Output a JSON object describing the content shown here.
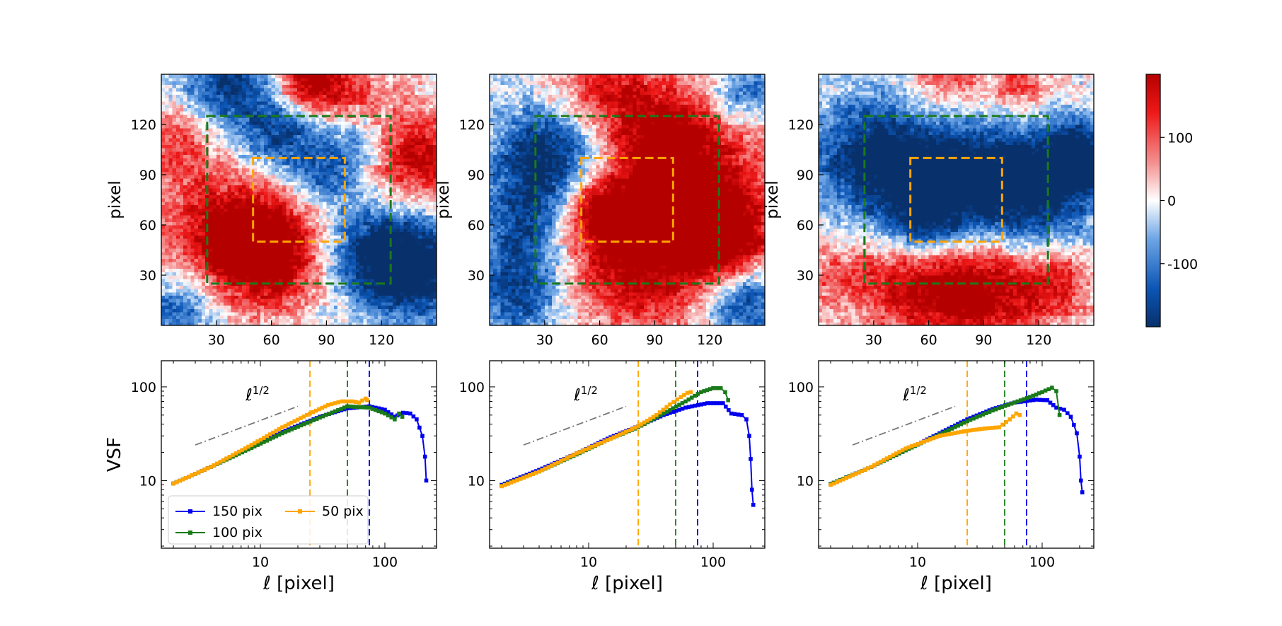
{
  "figure": {
    "map_ylabel": "pixel",
    "vsf_ylabel": "VSF",
    "vsf_xlabel_symbol": "ℓ",
    "vsf_xlabel_unit": "[pixel]",
    "slope_annotation_base": "ℓ",
    "slope_annotation_exp": "1/2",
    "colorbar": {
      "colormap": "diverging blue-white-red",
      "range": [
        -200,
        200
      ],
      "ticks": [
        "100",
        "0",
        "-100"
      ],
      "tick_values": [
        100,
        0,
        -100
      ],
      "colors": {
        "neg": "#08306b",
        "mid": "#ffffff",
        "pos": "#cc0000"
      }
    },
    "colors": {
      "box_150": "#0000ee",
      "box_100": "#1a7a1a",
      "box_50": "#ffa500",
      "slope_line": "#777777"
    },
    "legend": [
      {
        "label": "150 pix",
        "color": "#0000ee"
      },
      {
        "label": "50 pix",
        "color": "#ffa500"
      },
      {
        "label": "100 pix",
        "color": "#1a7a1a"
      }
    ]
  },
  "chart_data": [
    {
      "type": "heatmap",
      "panel": "top-left",
      "ylabel": "pixel",
      "xticks": [
        30,
        60,
        90,
        120
      ],
      "yticks": [
        30,
        60,
        90,
        120
      ],
      "xlim": [
        0,
        150
      ],
      "ylim": [
        0,
        150
      ],
      "boxes": [
        {
          "name": "100 pix",
          "color": "#1a7a1a",
          "x": [
            25,
            125
          ],
          "y": [
            25,
            125
          ]
        },
        {
          "name": "50 pix",
          "color": "#ffa500",
          "x": [
            50,
            100
          ],
          "y": [
            50,
            100
          ]
        }
      ],
      "blobs": [
        {
          "x": 40,
          "y": 55,
          "r": 38,
          "v": 1.0
        },
        {
          "x": 60,
          "y": 40,
          "r": 28,
          "v": 0.8
        },
        {
          "x": 80,
          "y": 145,
          "r": 18,
          "v": 0.9
        },
        {
          "x": 140,
          "y": 100,
          "r": 30,
          "v": 0.9
        },
        {
          "x": 5,
          "y": 110,
          "r": 25,
          "v": 0.5
        },
        {
          "x": 100,
          "y": 140,
          "r": 25,
          "v": 0.5
        },
        {
          "x": 35,
          "y": 145,
          "r": 25,
          "v": -0.8
        },
        {
          "x": 65,
          "y": 115,
          "r": 25,
          "v": -0.8
        },
        {
          "x": 90,
          "y": 90,
          "r": 18,
          "v": -0.6
        },
        {
          "x": 120,
          "y": 45,
          "r": 30,
          "v": -1.0
        },
        {
          "x": 140,
          "y": 30,
          "r": 25,
          "v": -0.9
        },
        {
          "x": 10,
          "y": 10,
          "r": 25,
          "v": -0.6
        },
        {
          "x": 110,
          "y": 110,
          "r": 18,
          "v": -0.5
        }
      ]
    },
    {
      "type": "heatmap",
      "panel": "top-middle",
      "ylabel": "pixel",
      "xticks": [
        30,
        60,
        90,
        120
      ],
      "yticks": [
        30,
        60,
        90,
        120
      ],
      "xlim": [
        0,
        150
      ],
      "ylim": [
        0,
        150
      ],
      "boxes": [
        {
          "name": "100 pix",
          "color": "#1a7a1a",
          "x": [
            25,
            125
          ],
          "y": [
            25,
            125
          ]
        },
        {
          "name": "50 pix",
          "color": "#ffa500",
          "x": [
            50,
            100
          ],
          "y": [
            50,
            100
          ]
        }
      ],
      "blobs": [
        {
          "x": 30,
          "y": 100,
          "r": 30,
          "v": -1.0
        },
        {
          "x": 20,
          "y": 60,
          "r": 25,
          "v": -0.7
        },
        {
          "x": 15,
          "y": 20,
          "r": 25,
          "v": -0.8
        },
        {
          "x": 140,
          "y": 140,
          "r": 18,
          "v": -0.6
        },
        {
          "x": 140,
          "y": 15,
          "r": 22,
          "v": -0.8
        },
        {
          "x": 110,
          "y": 85,
          "r": 40,
          "v": 1.0
        },
        {
          "x": 80,
          "y": 40,
          "r": 40,
          "v": 1.0
        },
        {
          "x": 90,
          "y": 120,
          "r": 30,
          "v": 0.7
        },
        {
          "x": 60,
          "y": 145,
          "r": 25,
          "v": 0.6
        },
        {
          "x": 60,
          "y": 70,
          "r": 20,
          "v": 0.7
        },
        {
          "x": 130,
          "y": 50,
          "r": 25,
          "v": 0.9
        }
      ]
    },
    {
      "type": "heatmap",
      "panel": "top-right",
      "ylabel": "pixel",
      "xticks": [
        30,
        60,
        90,
        120
      ],
      "yticks": [
        30,
        60,
        90,
        120
      ],
      "xlim": [
        0,
        150
      ],
      "ylim": [
        0,
        150
      ],
      "boxes": [
        {
          "name": "100 pix",
          "color": "#1a7a1a",
          "x": [
            25,
            125
          ],
          "y": [
            25,
            125
          ]
        },
        {
          "name": "50 pix",
          "color": "#ffa500",
          "x": [
            50,
            100
          ],
          "y": [
            50,
            100
          ]
        }
      ],
      "blobs": [
        {
          "x": 30,
          "y": 100,
          "r": 35,
          "v": -1.0
        },
        {
          "x": 75,
          "y": 85,
          "r": 35,
          "v": -1.0
        },
        {
          "x": 120,
          "y": 85,
          "r": 35,
          "v": -1.0
        },
        {
          "x": 145,
          "y": 100,
          "r": 20,
          "v": -0.9
        },
        {
          "x": 55,
          "y": 60,
          "r": 20,
          "v": -0.6
        },
        {
          "x": 90,
          "y": 20,
          "r": 30,
          "v": 1.0
        },
        {
          "x": 50,
          "y": 25,
          "r": 30,
          "v": 0.8
        },
        {
          "x": 10,
          "y": 30,
          "r": 18,
          "v": 0.4
        },
        {
          "x": 130,
          "y": 25,
          "r": 20,
          "v": 0.6
        },
        {
          "x": 70,
          "y": 145,
          "r": 20,
          "v": 0.5
        },
        {
          "x": 110,
          "y": 145,
          "r": 18,
          "v": 0.5
        }
      ]
    },
    {
      "type": "line",
      "panel": "bottom-left",
      "xscale": "log",
      "yscale": "log",
      "xlim": [
        1.6,
        260
      ],
      "ylim": [
        1.9,
        190
      ],
      "xlabel": "ℓ [pixel]",
      "ylabel": "VSF",
      "xticks": [
        10,
        100
      ],
      "yticks": [
        10,
        100
      ],
      "vlines": [
        {
          "x": 25,
          "color": "#ffa500"
        },
        {
          "x": 50,
          "color": "#1a7a1a"
        },
        {
          "x": 75,
          "color": "#0000ee"
        }
      ],
      "reference_line": {
        "x": [
          3,
          20
        ],
        "y": [
          24,
          62
        ]
      },
      "legend_location": "lower-left",
      "series": [
        {
          "name": "150 pix",
          "color": "#0000ee",
          "points": [
            [
              2,
              9.3
            ],
            [
              4,
              14
            ],
            [
              8,
              22
            ],
            [
              15,
              33
            ],
            [
              30,
              48
            ],
            [
              50,
              59
            ],
            [
              75,
              62
            ],
            [
              100,
              57
            ],
            [
              120,
              48
            ],
            [
              140,
              53
            ],
            [
              160,
              52
            ],
            [
              180,
              45
            ],
            [
              200,
              30
            ],
            [
              210,
              18
            ],
            [
              215,
              10
            ]
          ]
        },
        {
          "name": "100 pix",
          "color": "#1a7a1a",
          "points": [
            [
              2,
              9.3
            ],
            [
              4,
              14
            ],
            [
              8,
              21.5
            ],
            [
              15,
              32
            ],
            [
              30,
              47
            ],
            [
              50,
              62
            ],
            [
              75,
              60
            ],
            [
              100,
              52
            ],
            [
              120,
              45
            ],
            [
              130,
              52
            ],
            [
              138,
              48
            ]
          ]
        },
        {
          "name": "50 pix",
          "color": "#ffa500",
          "points": [
            [
              2,
              9.3
            ],
            [
              4,
              14
            ],
            [
              8,
              23
            ],
            [
              15,
              37
            ],
            [
              25,
              52
            ],
            [
              35,
              64
            ],
            [
              45,
              70
            ],
            [
              55,
              70
            ],
            [
              62,
              68
            ],
            [
              70,
              75
            ],
            [
              72,
              72
            ]
          ]
        }
      ]
    },
    {
      "type": "line",
      "panel": "bottom-middle",
      "xscale": "log",
      "yscale": "log",
      "xlim": [
        1.6,
        260
      ],
      "ylim": [
        1.9,
        190
      ],
      "xlabel": "ℓ [pixel]",
      "xticks": [
        10,
        100
      ],
      "yticks": [
        10,
        100
      ],
      "vlines": [
        {
          "x": 25,
          "color": "#ffa500"
        },
        {
          "x": 50,
          "color": "#1a7a1a"
        },
        {
          "x": 75,
          "color": "#0000ee"
        }
      ],
      "reference_line": {
        "x": [
          3,
          20
        ],
        "y": [
          24,
          62
        ]
      },
      "series": [
        {
          "name": "150 pix",
          "color": "#0000ee",
          "points": [
            [
              2,
              9
            ],
            [
              4,
              13
            ],
            [
              8,
              19.5
            ],
            [
              15,
              29
            ],
            [
              25,
              38
            ],
            [
              40,
              50
            ],
            [
              60,
              60
            ],
            [
              90,
              67
            ],
            [
              120,
              67
            ],
            [
              140,
              52
            ],
            [
              170,
              50
            ],
            [
              185,
              45
            ],
            [
              195,
              30
            ],
            [
              200,
              17
            ],
            [
              205,
              8
            ],
            [
              210,
              5.5
            ]
          ]
        },
        {
          "name": "100 pix",
          "color": "#1a7a1a",
          "points": [
            [
              2,
              8.8
            ],
            [
              4,
              12.5
            ],
            [
              8,
              19
            ],
            [
              15,
              28
            ],
            [
              25,
              37
            ],
            [
              40,
              52
            ],
            [
              60,
              70
            ],
            [
              80,
              88
            ],
            [
              100,
              97
            ],
            [
              115,
              97
            ],
            [
              125,
              88
            ],
            [
              132,
              72
            ]
          ]
        },
        {
          "name": "50 pix",
          "color": "#ffa500",
          "points": [
            [
              2,
              8.7
            ],
            [
              4,
              12.5
            ],
            [
              8,
              19.5
            ],
            [
              15,
              28
            ],
            [
              25,
              38
            ],
            [
              35,
              50
            ],
            [
              45,
              65
            ],
            [
              55,
              78
            ],
            [
              62,
              86
            ],
            [
              66,
              88
            ]
          ]
        }
      ]
    },
    {
      "type": "line",
      "panel": "bottom-right",
      "xscale": "log",
      "yscale": "log",
      "xlim": [
        1.6,
        260
      ],
      "ylim": [
        1.9,
        190
      ],
      "xlabel": "ℓ [pixel]",
      "xticks": [
        10,
        100
      ],
      "yticks": [
        10,
        100
      ],
      "vlines": [
        {
          "x": 25,
          "color": "#ffa500"
        },
        {
          "x": 50,
          "color": "#1a7a1a"
        },
        {
          "x": 75,
          "color": "#0000ee"
        }
      ],
      "reference_line": {
        "x": [
          3,
          20
        ],
        "y": [
          24,
          62
        ]
      },
      "series": [
        {
          "name": "150 pix",
          "color": "#0000ee",
          "points": [
            [
              2,
              9.2
            ],
            [
              4,
              13.5
            ],
            [
              8,
              21
            ],
            [
              15,
              32
            ],
            [
              25,
              45
            ],
            [
              40,
              58
            ],
            [
              60,
              68
            ],
            [
              90,
              73
            ],
            [
              110,
              72
            ],
            [
              130,
              60
            ],
            [
              150,
              57
            ],
            [
              170,
              48
            ],
            [
              190,
              32
            ],
            [
              200,
              18
            ],
            [
              205,
              10
            ],
            [
              210,
              7.5
            ]
          ]
        },
        {
          "name": "100 pix",
          "color": "#1a7a1a",
          "points": [
            [
              2,
              9.2
            ],
            [
              4,
              13.5
            ],
            [
              8,
              21
            ],
            [
              15,
              31
            ],
            [
              25,
              43
            ],
            [
              40,
              56
            ],
            [
              60,
              68
            ],
            [
              80,
              78
            ],
            [
              100,
              88
            ],
            [
              120,
              98
            ],
            [
              130,
              90
            ],
            [
              138,
              50
            ]
          ]
        },
        {
          "name": "50 pix",
          "color": "#ffa500",
          "points": [
            [
              2,
              9
            ],
            [
              4,
              13.5
            ],
            [
              8,
              22
            ],
            [
              15,
              30
            ],
            [
              25,
              34
            ],
            [
              35,
              36
            ],
            [
              45,
              37
            ],
            [
              55,
              45
            ],
            [
              62,
              52
            ],
            [
              66,
              50
            ]
          ]
        }
      ]
    }
  ]
}
